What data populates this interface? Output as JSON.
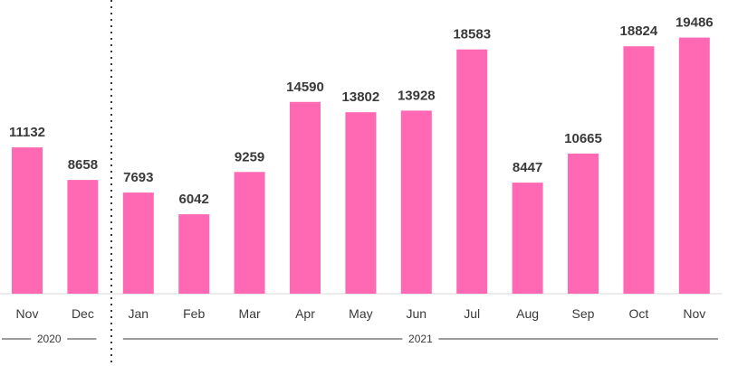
{
  "chart_data": {
    "type": "bar",
    "categories": [
      "Nov",
      "Dec",
      "Jan",
      "Feb",
      "Mar",
      "Apr",
      "May",
      "Jun",
      "Jul",
      "Aug",
      "Sep",
      "Oct",
      "Nov"
    ],
    "values": [
      11132,
      8658,
      7693,
      6042,
      9259,
      14590,
      13802,
      13928,
      18583,
      8447,
      10665,
      18824,
      19486
    ],
    "year_groups": [
      {
        "label": "2020",
        "start": 0,
        "end": 1
      },
      {
        "label": "2021",
        "start": 2,
        "end": 12
      }
    ],
    "bar_color": "#ff69b4",
    "ylim": [
      0,
      22000
    ],
    "grid": false,
    "data_labels": true,
    "divider": "dotted"
  }
}
